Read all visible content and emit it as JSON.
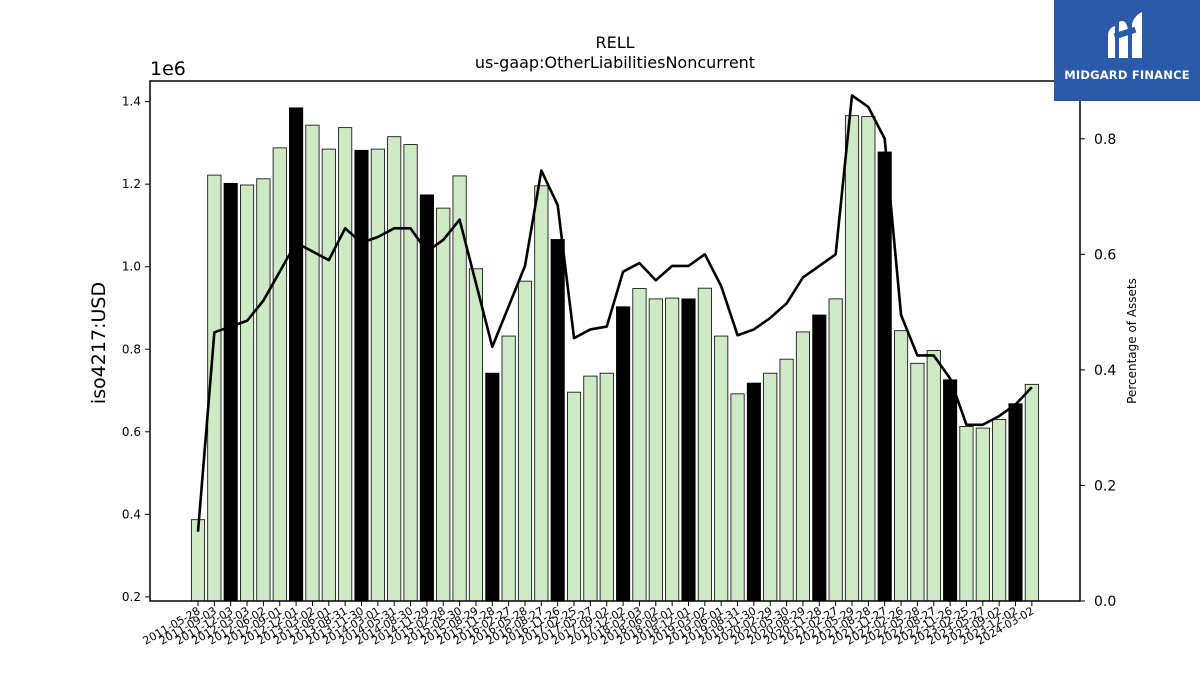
{
  "brand": {
    "name": "MIDGARD FINANCE",
    "background_color": "#2a5aa8",
    "logo_icon": "midgard-m-logo-icon"
  },
  "chart_data": {
    "type": "bar",
    "title": "RELL",
    "subtitle": "us-gaap:OtherLiabilitiesNoncurrent",
    "ylabel": "iso4217:USD",
    "y2label": "Percentage of Assets",
    "y_multiplier_label": "1e6",
    "ylim": [
      190000,
      1450000
    ],
    "y2lim": [
      0,
      0.9
    ],
    "yticks": [
      {
        "v": 200000,
        "label": "0.2"
      },
      {
        "v": 400000,
        "label": "0.4"
      },
      {
        "v": 600000,
        "label": "0.6"
      },
      {
        "v": 800000,
        "label": "0.8"
      },
      {
        "v": 1000000,
        "label": "1.0"
      },
      {
        "v": 1200000,
        "label": "1.2"
      },
      {
        "v": 1400000,
        "label": "1.4"
      }
    ],
    "y2ticks": [
      {
        "v": 0.0,
        "label": "0.0"
      },
      {
        "v": 0.2,
        "label": "0.2"
      },
      {
        "v": 0.4,
        "label": "0.4"
      },
      {
        "v": 0.6,
        "label": "0.6"
      },
      {
        "v": 0.8,
        "label": "0.8"
      }
    ],
    "grid": false,
    "colors": {
      "quarterly_bar": "#cdeac5",
      "annual_bar": "#000000",
      "line": "#000000"
    },
    "categories": [
      "2011-05-28",
      "2011-09-03",
      "2011-12-03",
      "2012-03-03",
      "2012-06-02",
      "2012-09-01",
      "2012-12-01",
      "2013-03-02",
      "2013-06-01",
      "2013-08-31",
      "2013-11-30",
      "2014-03-01",
      "2014-05-31",
      "2014-08-30",
      "2014-11-29",
      "2015-02-28",
      "2015-05-30",
      "2015-08-29",
      "2015-11-28",
      "2016-02-27",
      "2016-05-28",
      "2016-08-27",
      "2016-11-26",
      "2017-02-25",
      "2017-05-27",
      "2017-09-02",
      "2017-12-02",
      "2018-03-03",
      "2018-06-02",
      "2018-09-01",
      "2018-12-01",
      "2019-03-02",
      "2019-06-01",
      "2019-08-31",
      "2019-11-30",
      "2020-02-29",
      "2020-05-30",
      "2020-08-29",
      "2020-11-28",
      "2021-02-27",
      "2021-05-29",
      "2021-08-28",
      "2021-11-27",
      "2022-02-26",
      "2022-05-28",
      "2022-08-27",
      "2022-11-26",
      "2023-02-25",
      "2023-05-27",
      "2023-09-02",
      "2023-12-02",
      "2024-03-02"
    ],
    "tick_labels": [
      "2011-05-28",
      "2011-09-03",
      "2011-12-03",
      "2012-03-03",
      "2012-06-02",
      "2012-09-01",
      "2012-12-01",
      "2013-03-02",
      "2013-06-01",
      "2013-08-31",
      "2013-11-30",
      "2014-03-01",
      "2014-05-31",
      "2014-08-30",
      "2014-11-29",
      "2015-02-28",
      "2015-05-30",
      "2015-08-29",
      "2015-11-28",
      "2016-02-27",
      "2016-05-28",
      "2016-08-27",
      "2016-11-26",
      "2017-02-25",
      "2017-05-27",
      "2017-09-02",
      "2017-12-02",
      "2018-03-03",
      "2018-06-02",
      "2018-09-01",
      "2018-12-01",
      "2019-03-02",
      "2019-06-01",
      "2019-08-31",
      "2019-11-30",
      "2020-02-29",
      "2020-05-30",
      "2020-08-29",
      "2020-11-28",
      "2021-02-27",
      "2021-05-29",
      "2021-08-28",
      "2021-11-27",
      "2022-02-26",
      "2022-05-28",
      "2022-08-27",
      "2022-11-26",
      "2023-02-25",
      "2023-05-27",
      "2023-09-02",
      "2023-12-02",
      "2024-03-02"
    ],
    "values": [
      387000,
      1222000,
      1202000,
      1198000,
      1213000,
      1288000,
      1385000,
      1343000,
      1285000,
      1337000,
      1282000,
      1285000,
      1315000,
      1296000,
      1174000,
      1142000,
      1220000,
      995000,
      742000,
      832000,
      965000,
      1196000,
      1066000,
      696000,
      735000,
      742000,
      903000,
      947000,
      922000,
      924000,
      922000,
      948000,
      832000,
      692000,
      718000,
      742000,
      776000,
      842000,
      883000,
      922000,
      1366000,
      1364000,
      1278000,
      845000,
      766000,
      797000,
      726000,
      613000,
      609000,
      630000,
      668000,
      715000
    ],
    "annual": [
      false,
      false,
      true,
      false,
      false,
      false,
      true,
      false,
      false,
      false,
      true,
      false,
      false,
      false,
      true,
      false,
      false,
      false,
      true,
      false,
      false,
      false,
      true,
      false,
      false,
      false,
      true,
      false,
      false,
      false,
      true,
      false,
      false,
      false,
      true,
      false,
      false,
      false,
      true,
      false,
      false,
      false,
      true,
      false,
      false,
      false,
      true,
      false,
      false,
      false,
      true,
      false
    ],
    "percent_of_assets": [
      0.12,
      0.465,
      0.475,
      0.485,
      0.52,
      0.57,
      0.62,
      0.605,
      0.59,
      0.645,
      0.62,
      0.63,
      0.645,
      0.645,
      0.605,
      0.625,
      0.66,
      0.55,
      0.44,
      0.51,
      0.58,
      0.745,
      0.685,
      0.455,
      0.47,
      0.475,
      0.57,
      0.585,
      0.555,
      0.58,
      0.58,
      0.6,
      0.545,
      0.46,
      0.47,
      0.49,
      0.515,
      0.56,
      0.58,
      0.6,
      0.875,
      0.855,
      0.8,
      0.495,
      0.425,
      0.425,
      0.385,
      0.305,
      0.305,
      0.32,
      0.34,
      0.37
    ]
  }
}
